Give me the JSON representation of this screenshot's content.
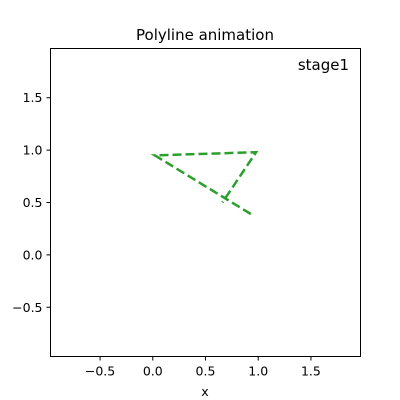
{
  "chart_data": {
    "type": "line",
    "title": "Polyline animation",
    "xlabel": "x",
    "ylabel": "",
    "xlim": [
      -0.97,
      1.97
    ],
    "ylim": [
      -0.97,
      1.97
    ],
    "xticks": [
      -0.5,
      0.0,
      0.5,
      1.0,
      1.5
    ],
    "xtick_labels": [
      "−0.5",
      "0.0",
      "0.5",
      "1.0",
      "1.5"
    ],
    "yticks": [
      -0.5,
      0.0,
      0.5,
      1.0,
      1.5
    ],
    "ytick_labels": [
      "−0.5",
      "0.0",
      "0.5",
      "1.0",
      "1.5"
    ],
    "grid": false,
    "annotation": "stage1",
    "series": [
      {
        "color": "#2ca02c",
        "linestyle": "dashed",
        "x": [
          0.93,
          0.02,
          0.98,
          0.66
        ],
        "y": [
          0.39,
          0.95,
          0.98,
          0.5
        ]
      }
    ]
  }
}
